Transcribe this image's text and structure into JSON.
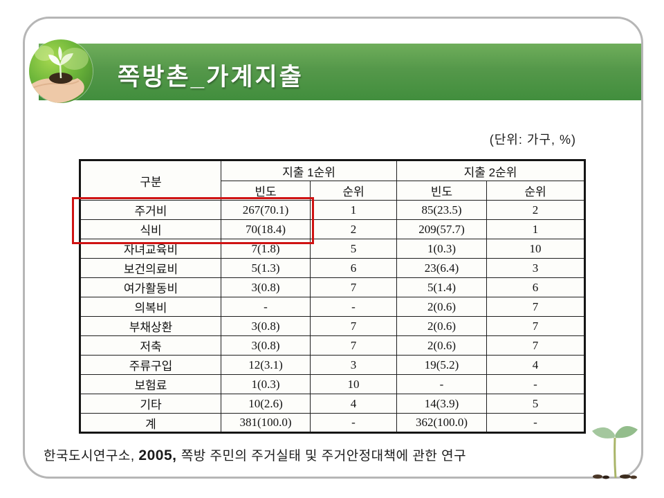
{
  "slide": {
    "title": "쪽방촌_가계지출",
    "unit_label": "(단위: 가구, %)",
    "caption": {
      "source": "한국도시연구소, ",
      "year": "2005, ",
      "work": "쪽방 주민의 주거실태 및 주거안정대책에 관한 연구"
    }
  },
  "table": {
    "corner_header": "구분",
    "group_headers": [
      "지출 1순위",
      "지출 2순위"
    ],
    "sub_headers": [
      "빈도",
      "순위",
      "빈도",
      "순위"
    ],
    "rows": [
      [
        "주거비",
        "267(70.1)",
        "1",
        "85(23.5)",
        "2"
      ],
      [
        "식비",
        "70(18.4)",
        "2",
        "209(57.7)",
        "1"
      ],
      [
        "자녀교육비",
        "7(1.8)",
        "5",
        "1(0.3)",
        "10"
      ],
      [
        "보건의료비",
        "5(1.3)",
        "6",
        "23(6.4)",
        "3"
      ],
      [
        "여가활동비",
        "3(0.8)",
        "7",
        "5(1.4)",
        "6"
      ],
      [
        "의복비",
        "-",
        "-",
        "2(0.6)",
        "7"
      ],
      [
        "부채상환",
        "3(0.8)",
        "7",
        "2(0.6)",
        "7"
      ],
      [
        "저축",
        "3(0.8)",
        "7",
        "2(0.6)",
        "7"
      ],
      [
        "주류구입",
        "12(3.1)",
        "3",
        "19(5.2)",
        "4"
      ],
      [
        "보험료",
        "1(0.3)",
        "10",
        "-",
        "-"
      ],
      [
        "기타",
        "10(2.6)",
        "4",
        "14(3.9)",
        "5"
      ],
      [
        "계",
        "381(100.0)",
        "-",
        "362(100.0)",
        "-"
      ]
    ],
    "highlighted_rows": [
      "주거비",
      "식비"
    ]
  },
  "theme": {
    "header_green_top": "#6fae5b",
    "header_green_bottom": "#418e3d",
    "border_gray": "#b6b6b6",
    "highlight_red": "#cf1212"
  }
}
